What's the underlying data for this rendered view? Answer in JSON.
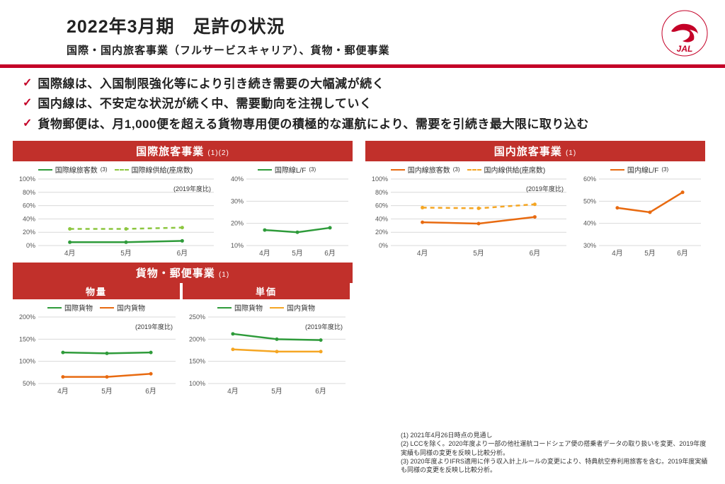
{
  "colors": {
    "brand_red": "#c40027",
    "banner_red": "#c1302b",
    "check": "#c40027",
    "green": "#2e9b3a",
    "light_green": "#8cc63f",
    "orange": "#e86a10",
    "light_orange": "#f5a623",
    "grid": "#d9d9d9",
    "axis_text": "#555555"
  },
  "header": {
    "title": "2022年3月期　足許の状況",
    "subtitle": "国際・国内旅客事業（フルサービスキャリア）、貨物・郵便事業",
    "logo_text": "JAL"
  },
  "bullets": [
    "国際線は、入国制限強化等により引き続き需要の大幅減が続く",
    "国内線は、不安定な状況が続く中、需要動向を注視していく",
    "貨物郵便は、月1,000便を超える貨物専用便の積極的な運航により、需要を引続き最大限に取り込む"
  ],
  "sections": {
    "intl_pax": {
      "title": "国際旅客事業",
      "sup": "(1)(2)"
    },
    "dom_pax": {
      "title": "国内旅客事業",
      "sup": "(1)"
    },
    "cargo": {
      "title": "貨物・郵便事業",
      "sup": "(1)"
    },
    "volume": "物量",
    "price": "単価"
  },
  "months": [
    "4月",
    "5月",
    "6月"
  ],
  "ref_note_2019": "(2019年度比)",
  "charts": {
    "intl_pax_vol": {
      "type": "line",
      "legend": [
        {
          "label": "国際線旅客数",
          "sup": "(3)",
          "color": "#2e9b3a",
          "style": "solid"
        },
        {
          "label": "国際線供給(座席数)",
          "color": "#8cc63f",
          "style": "dashed"
        }
      ],
      "ylim": [
        0,
        100
      ],
      "ytick_step": 20,
      "y_suffix": "%",
      "series": [
        {
          "color": "#2e9b3a",
          "style": "solid",
          "values": [
            5,
            5,
            7
          ]
        },
        {
          "color": "#8cc63f",
          "style": "dashed",
          "values": [
            25,
            25,
            27
          ]
        }
      ]
    },
    "intl_lf": {
      "type": "line",
      "legend": [
        {
          "label": "国際線L/F",
          "sup": "(3)",
          "color": "#2e9b3a",
          "style": "solid"
        }
      ],
      "ylim": [
        10,
        40
      ],
      "ytick_step": 10,
      "y_suffix": "%",
      "series": [
        {
          "color": "#2e9b3a",
          "style": "solid",
          "values": [
            17,
            16,
            18
          ]
        }
      ]
    },
    "dom_pax_vol": {
      "type": "line",
      "legend": [
        {
          "label": "国内線旅客数",
          "sup": "(3)",
          "color": "#e86a10",
          "style": "solid"
        },
        {
          "label": "国内線供給(座席数)",
          "color": "#f5a623",
          "style": "dashed"
        }
      ],
      "ylim": [
        0,
        100
      ],
      "ytick_step": 20,
      "y_suffix": "%",
      "series": [
        {
          "color": "#e86a10",
          "style": "solid",
          "values": [
            35,
            33,
            43
          ]
        },
        {
          "color": "#f5a623",
          "style": "dashed",
          "values": [
            57,
            56,
            62
          ]
        }
      ]
    },
    "dom_lf": {
      "type": "line",
      "legend": [
        {
          "label": "国内線L/F",
          "sup": "(3)",
          "color": "#e86a10",
          "style": "solid"
        }
      ],
      "ylim": [
        30,
        60
      ],
      "ytick_step": 10,
      "y_suffix": "%",
      "series": [
        {
          "color": "#e86a10",
          "style": "solid",
          "values": [
            47,
            45,
            54
          ]
        }
      ]
    },
    "cargo_vol": {
      "type": "line",
      "legend": [
        {
          "label": "国際貨物",
          "color": "#2e9b3a",
          "style": "solid"
        },
        {
          "label": "国内貨物",
          "color": "#e86a10",
          "style": "solid"
        }
      ],
      "ylim": [
        50,
        200
      ],
      "ytick_step": 50,
      "y_suffix": "%",
      "series": [
        {
          "color": "#2e9b3a",
          "style": "solid",
          "values": [
            120,
            118,
            120
          ]
        },
        {
          "color": "#e86a10",
          "style": "solid",
          "values": [
            65,
            65,
            72
          ]
        }
      ]
    },
    "cargo_price": {
      "type": "line",
      "legend": [
        {
          "label": "国際貨物",
          "color": "#2e9b3a",
          "style": "solid"
        },
        {
          "label": "国内貨物",
          "color": "#f5a623",
          "style": "solid"
        }
      ],
      "ylim": [
        100,
        250
      ],
      "ytick_step": 50,
      "y_suffix": "%",
      "series": [
        {
          "color": "#2e9b3a",
          "style": "solid",
          "values": [
            212,
            200,
            198
          ]
        },
        {
          "color": "#f5a623",
          "style": "solid",
          "values": [
            177,
            172,
            172
          ]
        }
      ]
    }
  },
  "footnotes": [
    "(1) 2021年4月26日時点の見通し",
    "(2) LCCを除く。2020年度より一部の他社運航コードシェア便の搭乗者データの取り扱いを変更、2019年度実績も同様の変更を反映し比較分析。",
    "(3) 2020年度よりIFRS適用に伴う収入計上ルールの変更により、特典航空券利用旅客を含む。2019年度実績も同様の変更を反映し比較分析。"
  ]
}
